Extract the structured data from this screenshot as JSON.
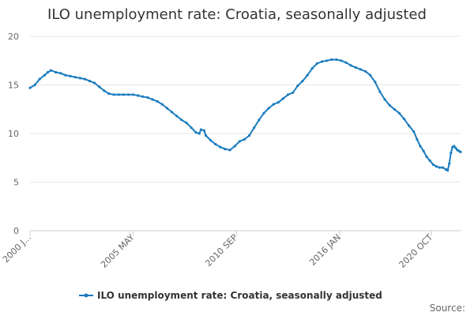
{
  "chart_data": {
    "type": "line",
    "title": "ILO unemployment rate: Croatia, seasonally adjusted",
    "xlabel": "",
    "ylabel": "",
    "ylim": [
      0,
      20
    ],
    "yticks": [
      0,
      5,
      10,
      15,
      20
    ],
    "xticks": [
      {
        "label": "2000 J...",
        "t": 0
      },
      {
        "label": "2005 MAY",
        "t": 64
      },
      {
        "label": "2010 SEP",
        "t": 128
      },
      {
        "label": "2016 JAN",
        "t": 192
      },
      {
        "label": "2020 OCT",
        "t": 249
      }
    ],
    "x_count": 250,
    "grid": true,
    "legend": "bottom",
    "series": [
      {
        "name": "ILO unemployment rate: Croatia, seasonally adjusted",
        "color": "#1a7cbf",
        "points": [
          [
            0,
            14.7
          ],
          [
            3,
            15.0
          ],
          [
            6,
            15.6
          ],
          [
            9,
            16.0
          ],
          [
            11,
            16.3
          ],
          [
            13,
            16.5
          ],
          [
            16,
            16.3
          ],
          [
            19,
            16.2
          ],
          [
            22,
            16.0
          ],
          [
            25,
            15.9
          ],
          [
            28,
            15.8
          ],
          [
            31,
            15.7
          ],
          [
            34,
            15.6
          ],
          [
            37,
            15.4
          ],
          [
            40,
            15.2
          ],
          [
            43,
            14.8
          ],
          [
            46,
            14.4
          ],
          [
            49,
            14.1
          ],
          [
            52,
            14.0
          ],
          [
            55,
            14.0
          ],
          [
            58,
            14.0
          ],
          [
            61,
            14.0
          ],
          [
            64,
            14.0
          ],
          [
            67,
            13.9
          ],
          [
            70,
            13.8
          ],
          [
            73,
            13.7
          ],
          [
            76,
            13.5
          ],
          [
            79,
            13.3
          ],
          [
            82,
            13.0
          ],
          [
            85,
            12.6
          ],
          [
            88,
            12.2
          ],
          [
            91,
            11.8
          ],
          [
            94,
            11.4
          ],
          [
            97,
            11.1
          ],
          [
            100,
            10.6
          ],
          [
            103,
            10.1
          ],
          [
            105,
            10.0
          ],
          [
            106,
            10.4
          ],
          [
            108,
            10.3
          ],
          [
            109,
            9.8
          ],
          [
            112,
            9.3
          ],
          [
            115,
            8.9
          ],
          [
            118,
            8.6
          ],
          [
            121,
            8.4
          ],
          [
            124,
            8.3
          ],
          [
            127,
            8.7
          ],
          [
            130,
            9.2
          ],
          [
            133,
            9.4
          ],
          [
            136,
            9.8
          ],
          [
            139,
            10.6
          ],
          [
            142,
            11.4
          ],
          [
            145,
            12.1
          ],
          [
            148,
            12.6
          ],
          [
            151,
            13.0
          ],
          [
            154,
            13.2
          ],
          [
            157,
            13.6
          ],
          [
            160,
            14.0
          ],
          [
            163,
            14.2
          ],
          [
            166,
            14.9
          ],
          [
            169,
            15.4
          ],
          [
            172,
            16.0
          ],
          [
            175,
            16.7
          ],
          [
            178,
            17.2
          ],
          [
            181,
            17.4
          ],
          [
            184,
            17.5
          ],
          [
            187,
            17.6
          ],
          [
            190,
            17.6
          ],
          [
            193,
            17.5
          ],
          [
            196,
            17.3
          ],
          [
            199,
            17.0
          ],
          [
            202,
            16.8
          ],
          [
            205,
            16.6
          ],
          [
            208,
            16.4
          ],
          [
            211,
            16.0
          ],
          [
            214,
            15.3
          ],
          [
            217,
            14.3
          ],
          [
            220,
            13.5
          ],
          [
            223,
            12.9
          ],
          [
            226,
            12.5
          ],
          [
            229,
            12.1
          ],
          [
            232,
            11.5
          ],
          [
            235,
            10.8
          ],
          [
            238,
            10.2
          ],
          [
            240,
            9.4
          ],
          [
            242,
            8.7
          ],
          [
            244,
            8.2
          ],
          [
            246,
            7.6
          ],
          [
            248,
            7.2
          ],
          [
            250,
            6.8
          ],
          [
            252,
            6.6
          ],
          [
            254,
            6.5
          ],
          [
            256,
            6.5
          ],
          [
            258,
            6.3
          ],
          [
            259,
            6.2
          ],
          [
            260,
            6.9
          ],
          [
            261,
            8.0
          ],
          [
            262,
            8.6
          ],
          [
            263,
            8.7
          ],
          [
            264,
            8.5
          ],
          [
            265,
            8.3
          ],
          [
            266,
            8.2
          ],
          [
            267,
            8.1
          ]
        ]
      }
    ],
    "source_label": "Source:"
  }
}
